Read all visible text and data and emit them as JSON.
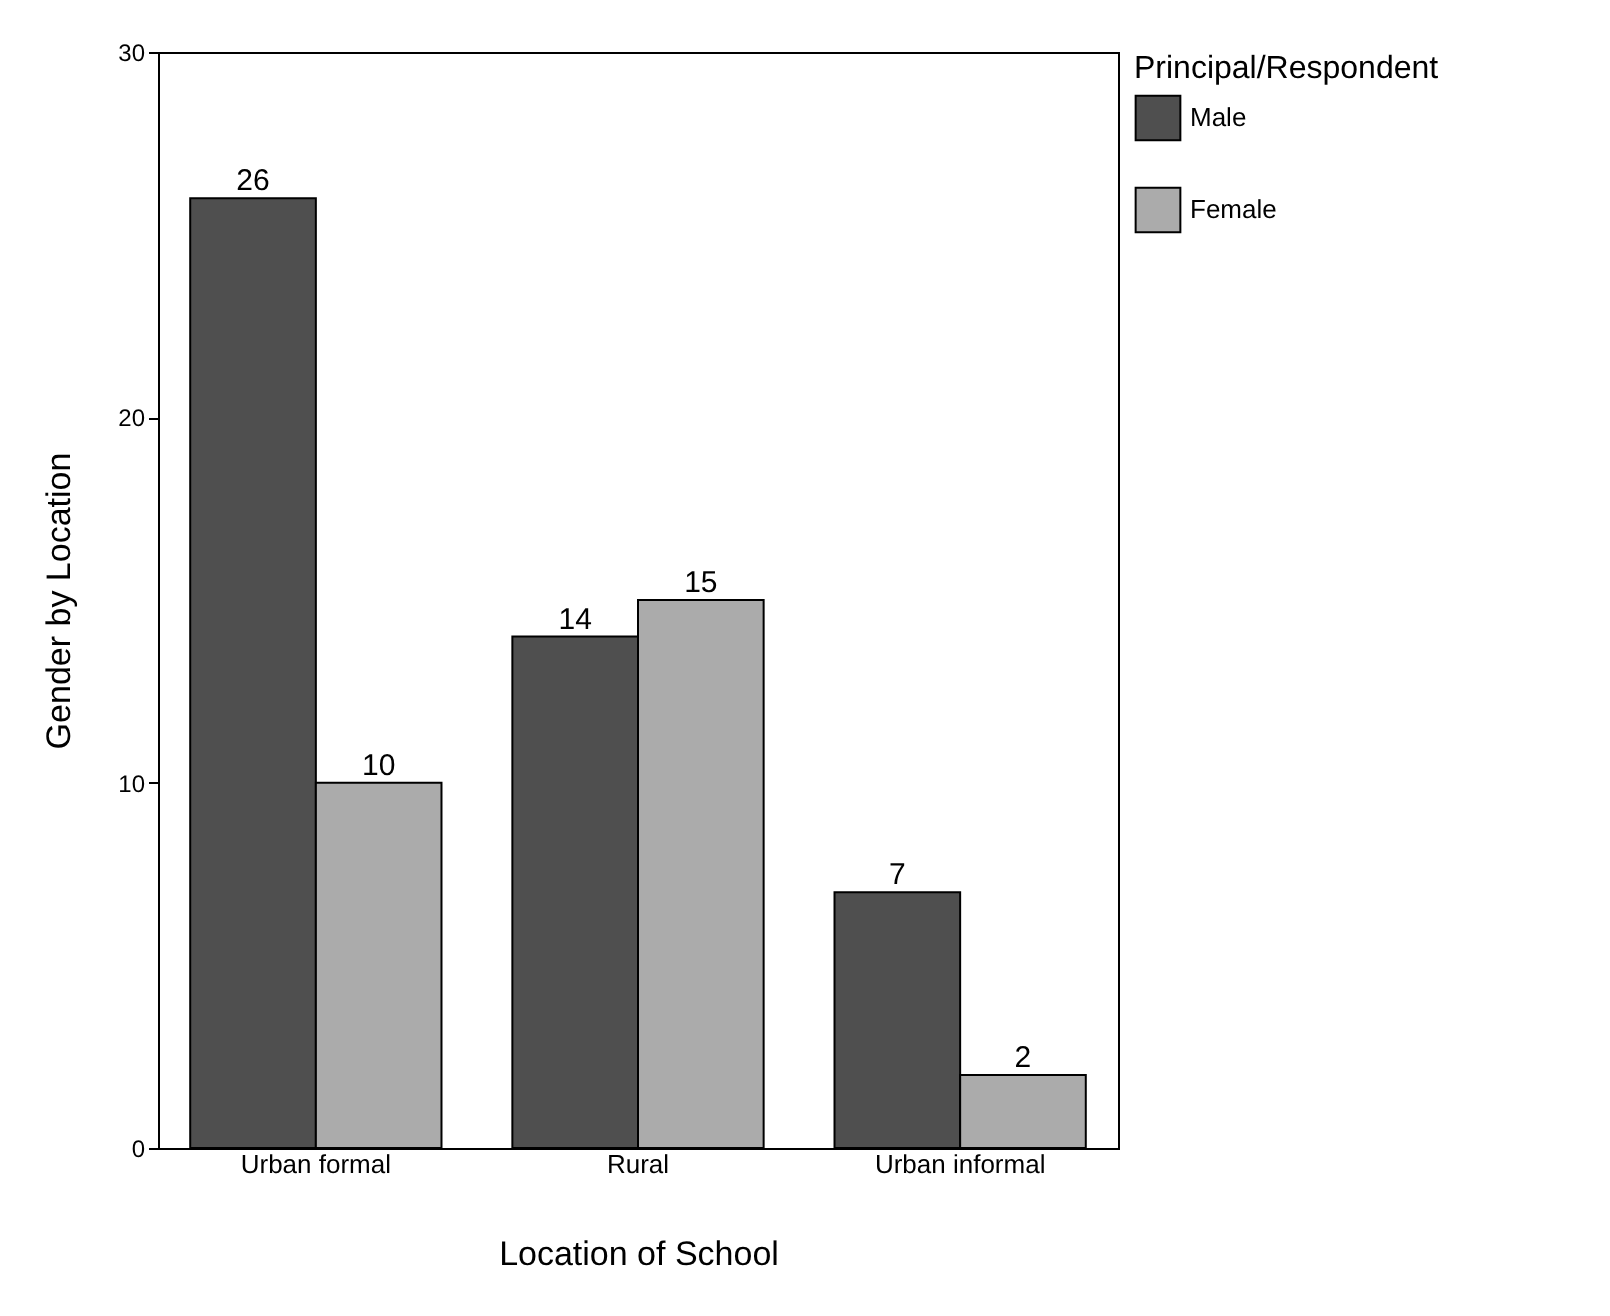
{
  "chart_data": {
    "type": "bar",
    "xlabel": "Location of School",
    "ylabel": "Gender by Location",
    "legend_title": "Principal/Respondent",
    "categories": [
      "Urban formal",
      "Rural",
      "Urban informal"
    ],
    "series": [
      {
        "name": "Male",
        "color": "#4f4f4f",
        "values": [
          26,
          14,
          7
        ]
      },
      {
        "name": "Female",
        "color": "#ababab",
        "values": [
          10,
          15,
          2
        ]
      }
    ],
    "ylim": [
      0,
      30
    ],
    "yticks": [
      0,
      10,
      20,
      30
    ],
    "data_labels": true,
    "legend": "right"
  }
}
